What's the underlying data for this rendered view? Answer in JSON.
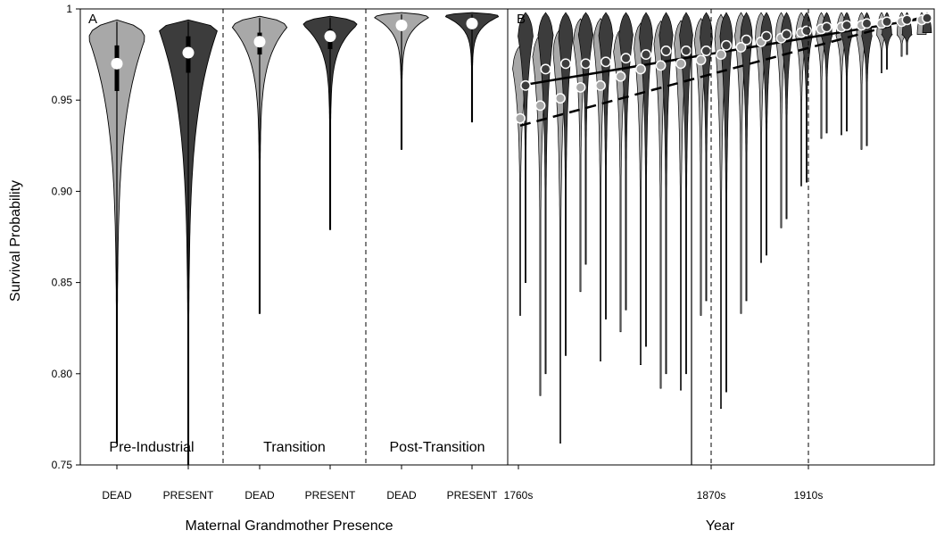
{
  "colors": {
    "dead": "#a8a8a8",
    "present": "#3c3c3c",
    "mean_marker": "#ffffff",
    "axis": "#000000"
  },
  "axis_titles": {
    "y": "Survival Probability",
    "x_panel_a": "Maternal Grandmother Presence",
    "x_panel_b": "Year"
  },
  "panel_letters": {
    "a": "A",
    "b": "B"
  },
  "y_ticks": [
    {
      "value": 0.75,
      "label": "0.75"
    },
    {
      "value": 0.8,
      "label": "0.80"
    },
    {
      "value": 0.85,
      "label": "0.85"
    },
    {
      "value": 0.9,
      "label": "0.90"
    },
    {
      "value": 0.95,
      "label": "0.95"
    },
    {
      "value": 1.0,
      "label": "1"
    }
  ],
  "panel_b_x_ticks": [
    "1760s",
    "1870s",
    "1910s"
  ],
  "chart_data": [
    {
      "type": "violin",
      "panel": "A",
      "xlabel": "Maternal Grandmother Presence",
      "ylabel": "Survival Probability",
      "ylim": [
        0.75,
        1.0
      ],
      "eras": [
        "Pre-Industrial",
        "Transition",
        "Post-Transition"
      ],
      "categories": [
        "DEAD",
        "PRESENT",
        "DEAD",
        "PRESENT",
        "DEAD",
        "PRESENT"
      ],
      "violins": [
        {
          "era": "Pre-Industrial",
          "group": "DEAD",
          "mean": 0.97,
          "q1": 0.955,
          "q3": 0.98,
          "min": 0.762,
          "max": 0.994
        },
        {
          "era": "Pre-Industrial",
          "group": "PRESENT",
          "mean": 0.976,
          "q1": 0.965,
          "q3": 0.985,
          "min": 0.75,
          "max": 0.994
        },
        {
          "era": "Transition",
          "group": "DEAD",
          "mean": 0.982,
          "q1": 0.975,
          "q3": 0.987,
          "min": 0.833,
          "max": 0.996
        },
        {
          "era": "Transition",
          "group": "PRESENT",
          "mean": 0.985,
          "q1": 0.978,
          "q3": 0.989,
          "min": 0.879,
          "max": 0.996
        },
        {
          "era": "Post-Transition",
          "group": "DEAD",
          "mean": 0.991,
          "q1": 0.988,
          "q3": 0.994,
          "min": 0.923,
          "max": 0.998
        },
        {
          "era": "Post-Transition",
          "group": "PRESENT",
          "mean": 0.992,
          "q1": 0.989,
          "q3": 0.995,
          "min": 0.938,
          "max": 0.998
        }
      ]
    },
    {
      "type": "violin",
      "panel": "B",
      "xlabel": "Year",
      "ylabel": "Survival Probability",
      "ylim": [
        0.75,
        1.0
      ],
      "decades_shown": 21,
      "x_tick_labels": [
        "1760s",
        "1870s",
        "1910s"
      ],
      "era_boundaries": [
        "1870s",
        "1910s"
      ],
      "series": [
        {
          "name": "DEAD",
          "means": [
            0.94,
            0.947,
            0.951,
            0.957,
            0.958,
            0.963,
            0.967,
            0.969,
            0.97,
            0.972,
            0.975,
            0.979,
            0.982,
            0.984,
            0.987,
            0.989,
            0.99,
            0.991,
            0.992,
            0.993,
            0.994
          ],
          "mins": [
            0.832,
            0.788,
            0.762,
            0.845,
            0.807,
            0.823,
            0.805,
            0.792,
            0.791,
            0.832,
            0.781,
            0.833,
            0.861,
            0.88,
            0.903,
            0.929,
            0.931,
            0.923,
            0.965,
            0.974,
            0.986
          ]
        },
        {
          "name": "PRESENT",
          "means": [
            0.958,
            0.967,
            0.97,
            0.97,
            0.971,
            0.973,
            0.975,
            0.977,
            0.977,
            0.977,
            0.98,
            0.983,
            0.985,
            0.986,
            0.988,
            0.99,
            0.991,
            0.992,
            0.993,
            0.994,
            0.995
          ],
          "mins": [
            0.85,
            0.8,
            0.81,
            0.86,
            0.83,
            0.835,
            0.815,
            0.8,
            0.8,
            0.84,
            0.79,
            0.84,
            0.865,
            0.885,
            0.905,
            0.932,
            0.933,
            0.925,
            0.967,
            0.975,
            0.987
          ]
        }
      ],
      "trend_lines": [
        {
          "series": "PRESENT",
          "style": "solid",
          "start": 0.958,
          "end": 0.995
        },
        {
          "series": "DEAD",
          "style": "dashed",
          "start": 0.936,
          "end": 0.996
        }
      ]
    }
  ]
}
